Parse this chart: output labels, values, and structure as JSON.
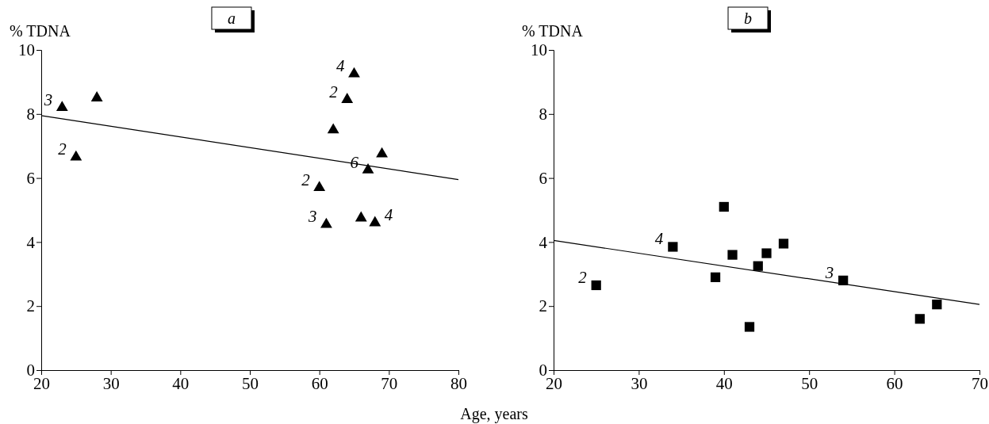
{
  "chart_data": [
    {
      "type": "scatter",
      "title": "a",
      "xlabel": "Age, years",
      "ylabel": "% TDNA",
      "xlim": [
        20,
        80
      ],
      "xticks": [
        20,
        30,
        40,
        50,
        60,
        70,
        80
      ],
      "ylim": [
        0,
        10
      ],
      "yticks": [
        0,
        2,
        4,
        6,
        8,
        10
      ],
      "series": [
        {
          "type": "scatter",
          "marker": "triangle",
          "color": "#000000",
          "x": [
            23,
            28,
            25,
            65,
            64,
            62,
            69,
            67,
            60,
            61,
            66,
            68
          ],
          "values": [
            8.2,
            8.5,
            6.65,
            9.25,
            8.45,
            7.5,
            6.75,
            6.25,
            5.7,
            4.55,
            4.75,
            4.6
          ]
        },
        {
          "type": "line",
          "line_style": "solid",
          "color": "#000000",
          "x": [
            20,
            80
          ],
          "values": [
            7.95,
            5.95
          ]
        }
      ],
      "annotations": [
        {
          "text": "3",
          "x": 23,
          "y": 8.2
        },
        {
          "text": "2",
          "x": 25,
          "y": 6.65
        },
        {
          "text": "4",
          "x": 65,
          "y": 9.25
        },
        {
          "text": "2",
          "x": 64,
          "y": 8.45
        },
        {
          "text": "6",
          "x": 67,
          "y": 6.25
        },
        {
          "text": "2",
          "x": 60,
          "y": 5.7
        },
        {
          "text": "3",
          "x": 61,
          "y": 4.55
        },
        {
          "text": "4",
          "x": 68,
          "y": 4.6
        }
      ]
    },
    {
      "type": "scatter",
      "title": "b",
      "ylabel": "% TDNA",
      "xlim": [
        20,
        70
      ],
      "xticks": [
        20,
        30,
        40,
        50,
        60,
        70
      ],
      "ylim": [
        0,
        10
      ],
      "yticks": [
        0,
        2,
        4,
        6,
        8,
        10
      ],
      "series": [
        {
          "type": "scatter",
          "marker": "square",
          "color": "#000000",
          "x": [
            25,
            34,
            40,
            39,
            41,
            44,
            45,
            47,
            43,
            54,
            63,
            65
          ],
          "values": [
            2.65,
            3.85,
            5.1,
            2.9,
            3.6,
            3.25,
            3.65,
            3.95,
            1.35,
            2.8,
            1.6,
            2.05
          ]
        },
        {
          "type": "line",
          "line_style": "solid",
          "color": "#000000",
          "x": [
            20,
            70
          ],
          "values": [
            4.05,
            2.05
          ]
        }
      ],
      "annotations": [
        {
          "text": "2",
          "x": 25,
          "y": 2.65
        },
        {
          "text": "4",
          "x": 34,
          "y": 3.85
        },
        {
          "text": "3",
          "x": 54,
          "y": 2.8
        }
      ]
    }
  ]
}
